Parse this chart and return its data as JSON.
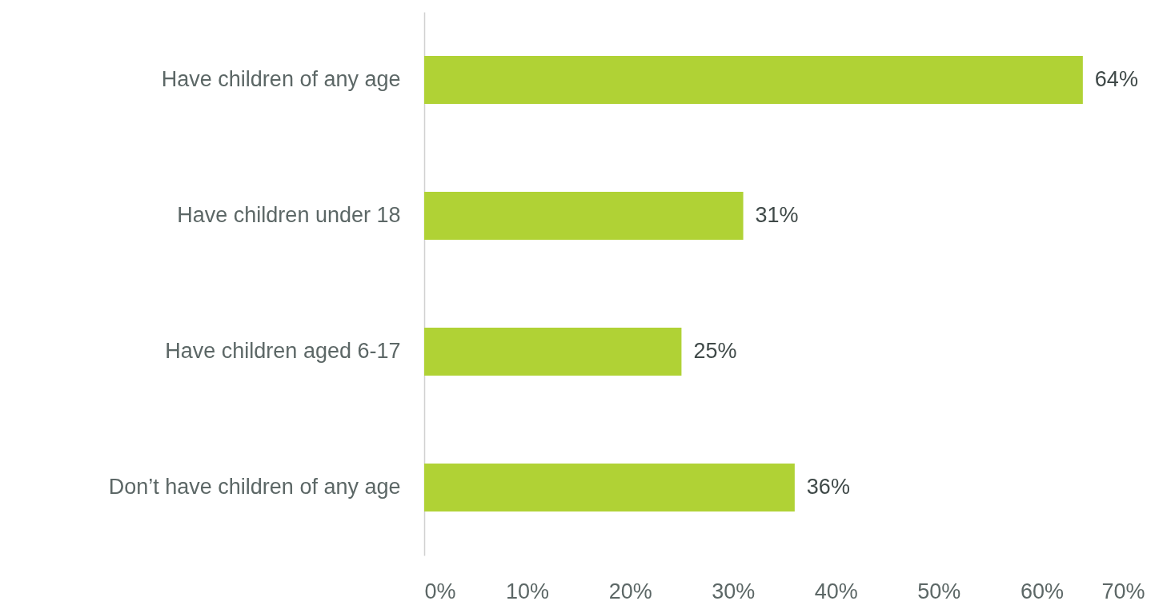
{
  "chart_data": {
    "type": "bar",
    "orientation": "horizontal",
    "categories": [
      "Have children of any age",
      "Have children under 18",
      "Have children aged 6-17",
      "Don’t have children of any age"
    ],
    "values": [
      64,
      31,
      25,
      36
    ],
    "value_labels": [
      "64%",
      "31%",
      "25%",
      "36%"
    ],
    "color": "#b0d235",
    "xlim": [
      0,
      70
    ],
    "xticks": [
      {
        "value": 0,
        "label": "0%"
      },
      {
        "value": 10,
        "label": "10%"
      },
      {
        "value": 20,
        "label": "20%"
      },
      {
        "value": 30,
        "label": "30%"
      },
      {
        "value": 40,
        "label": "40%"
      },
      {
        "value": 50,
        "label": "50%"
      },
      {
        "value": 60,
        "label": "60%"
      },
      {
        "value": 70,
        "label": "70%"
      }
    ]
  }
}
